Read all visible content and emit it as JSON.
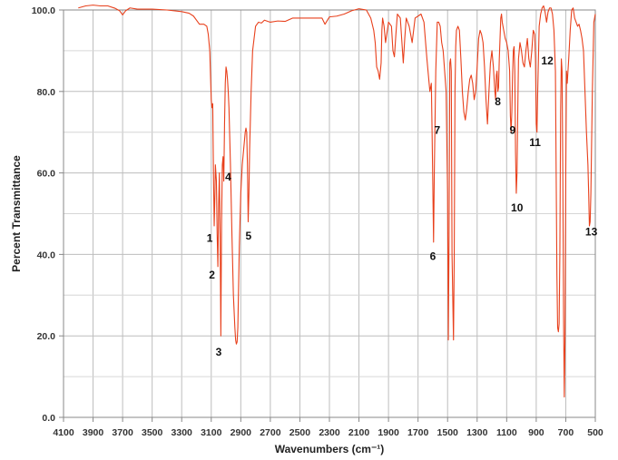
{
  "chart_data": {
    "type": "line",
    "title": "",
    "xlabel": "Wavenumbers (cm⁻¹)",
    "ylabel": "Percent Transmittance",
    "xlim": [
      4100,
      500
    ],
    "ylim": [
      0,
      100
    ],
    "x_reversed": true,
    "x_ticks": [
      "4100",
      "3900",
      "3700",
      "3500",
      "3300",
      "3100",
      "2900",
      "2700",
      "2500",
      "2300",
      "2100",
      "1900",
      "1700",
      "1500",
      "1300",
      "1100",
      "900",
      "700",
      "500"
    ],
    "y_ticks": [
      "0.0",
      "20.0",
      "40.0",
      "60.0",
      "80.0",
      "100.0"
    ],
    "grid": true,
    "line_color": "#e8401c",
    "series": [
      {
        "x": [
          4000,
          3950,
          3900,
          3850,
          3800,
          3750,
          3720,
          3700,
          3680,
          3650,
          3600,
          3500,
          3400,
          3300,
          3250,
          3220,
          3200,
          3180,
          3150,
          3130,
          3120,
          3110,
          3100,
          3095,
          3090,
          3085,
          3080,
          3075,
          3072,
          3065,
          3060,
          3055,
          3050,
          3045,
          3040,
          3035,
          3030,
          3025,
          3020,
          3015,
          3010,
          3005,
          3000,
          2995,
          2990,
          2985,
          2980,
          2970,
          2960,
          2950,
          2940,
          2935,
          2930,
          2925,
          2920,
          2915,
          2910,
          2900,
          2890,
          2880,
          2870,
          2865,
          2860,
          2855,
          2850,
          2845,
          2840,
          2830,
          2820,
          2800,
          2780,
          2760,
          2740,
          2700,
          2650,
          2600,
          2550,
          2500,
          2450,
          2400,
          2350,
          2330,
          2300,
          2250,
          2200,
          2150,
          2100,
          2050,
          2020,
          2000,
          1990,
          1980,
          1970,
          1960,
          1950,
          1945,
          1940,
          1930,
          1920,
          1900,
          1880,
          1870,
          1860,
          1850,
          1840,
          1820,
          1800,
          1790,
          1780,
          1760,
          1740,
          1720,
          1700,
          1680,
          1660,
          1640,
          1620,
          1610,
          1605,
          1600,
          1595,
          1590,
          1580,
          1570,
          1560,
          1550,
          1540,
          1530,
          1520,
          1510,
          1500,
          1495,
          1490,
          1485,
          1480,
          1475,
          1470,
          1460,
          1455,
          1450,
          1445,
          1440,
          1430,
          1420,
          1410,
          1400,
          1390,
          1380,
          1370,
          1360,
          1350,
          1340,
          1330,
          1320,
          1310,
          1300,
          1290,
          1280,
          1270,
          1260,
          1250,
          1240,
          1230,
          1220,
          1210,
          1200,
          1190,
          1185,
          1180,
          1175,
          1170,
          1165,
          1160,
          1155,
          1150,
          1145,
          1140,
          1135,
          1130,
          1120,
          1110,
          1100,
          1090,
          1080,
          1075,
          1070,
          1065,
          1060,
          1055,
          1050,
          1045,
          1040,
          1035,
          1030,
          1025,
          1020,
          1010,
          1000,
          990,
          980,
          970,
          960,
          950,
          940,
          930,
          920,
          910,
          905,
          900,
          895,
          890,
          880,
          870,
          860,
          850,
          840,
          830,
          820,
          810,
          800,
          790,
          780,
          770,
          765,
          760,
          755,
          750,
          745,
          740,
          735,
          730,
          725,
          720,
          715,
          710,
          705,
          700,
          695,
          690,
          680,
          670,
          660,
          650,
          640,
          630,
          620,
          610,
          600,
          590,
          580,
          570,
          560,
          550,
          545,
          540,
          535,
          530,
          520,
          510,
          500
        ],
        "y": [
          100.5,
          101.0,
          101.2,
          101.0,
          101.0,
          100.4,
          99.8,
          98.8,
          99.8,
          100.5,
          100.2,
          100.2,
          100.0,
          99.6,
          99.2,
          98.5,
          97.5,
          96.5,
          96.5,
          96.0,
          94.0,
          90.0,
          78.0,
          76.0,
          77.0,
          60.0,
          47.0,
          55.0,
          62.0,
          58.0,
          45.0,
          37.0,
          52.0,
          60.0,
          45.0,
          20.0,
          48.0,
          62.0,
          64.0,
          58.0,
          72.0,
          82.0,
          86.0,
          85.0,
          83.0,
          80.0,
          76.0,
          62.0,
          45.0,
          30.0,
          22.0,
          19.0,
          18.0,
          18.5,
          22.0,
          32.0,
          42.0,
          55.0,
          62.0,
          66.0,
          70.0,
          71.0,
          70.0,
          62.0,
          48.0,
          55.0,
          66.0,
          80.0,
          90.0,
          96.0,
          97.0,
          96.8,
          97.5,
          97.0,
          97.3,
          97.2,
          98.0,
          98.0,
          98.0,
          98.0,
          98.0,
          96.5,
          98.3,
          98.5,
          99.0,
          99.8,
          100.3,
          100.0,
          98.0,
          95.0,
          92.0,
          86.0,
          85.0,
          83.0,
          87.0,
          95.0,
          98.0,
          96.0,
          92.0,
          97.0,
          96.0,
          90.0,
          88.5,
          94.0,
          99.0,
          98.0,
          87.0,
          93.0,
          98.0,
          96.0,
          92.0,
          98.0,
          98.5,
          99.0,
          97.0,
          88.0,
          80.0,
          82.0,
          70.0,
          57.0,
          43.0,
          60.0,
          85.0,
          97.0,
          97.0,
          96.0,
          92.0,
          90.0,
          85.0,
          80.0,
          55.0,
          19.0,
          45.0,
          87.0,
          88.0,
          85.0,
          40.0,
          19.0,
          40.0,
          80.0,
          91.0,
          95.0,
          96.0,
          95.0,
          88.0,
          80.0,
          75.0,
          73.0,
          76.0,
          80.0,
          83.0,
          84.0,
          82.0,
          78.0,
          80.0,
          86.0,
          93.0,
          95.0,
          94.0,
          92.0,
          86.0,
          78.0,
          72.0,
          80.0,
          87.0,
          90.0,
          86.0,
          83.0,
          80.0,
          78.0,
          84.0,
          85.0,
          80.0,
          81.0,
          88.0,
          93.0,
          98.0,
          99.0,
          97.0,
          95.0,
          93.0,
          92.0,
          90.0,
          85.0,
          74.0,
          70.0,
          75.0,
          84.0,
          90.0,
          91.0,
          85.0,
          65.0,
          55.0,
          60.0,
          75.0,
          88.0,
          92.0,
          90.0,
          87.0,
          86.0,
          90.0,
          93.0,
          88.0,
          86.0,
          90.0,
          95.0,
          94.0,
          88.0,
          72.0,
          70.0,
          80.0,
          96.0,
          99.0,
          100.5,
          101.0,
          99.5,
          97.0,
          99.5,
          100.5,
          100.5,
          99.0,
          95.0,
          85.0,
          60.0,
          35.0,
          22.0,
          21.0,
          23.0,
          40.0,
          75.0,
          88.0,
          85.0,
          60.0,
          25.0,
          5.0,
          20.0,
          60.0,
          85.0,
          82.0,
          88.0,
          95.0,
          100.0,
          100.5,
          98.0,
          97.0,
          96.0,
          96.5,
          95.0,
          93.0,
          90.0,
          80.0,
          70.0,
          62.0,
          55.0,
          47.0,
          48.0,
          55.0,
          80.0,
          97.0,
          99.0
        ]
      }
    ],
    "annotations": [
      {
        "text": "1",
        "x": 3110,
        "y": 44
      },
      {
        "text": "2",
        "x": 3095,
        "y": 35
      },
      {
        "text": "3",
        "x": 3050,
        "y": 16
      },
      {
        "text": "4",
        "x": 2985,
        "y": 59
      },
      {
        "text": "5",
        "x": 2848,
        "y": 44.5
      },
      {
        "text": "6",
        "x": 1600,
        "y": 39.5
      },
      {
        "text": "7",
        "x": 1570,
        "y": 70.5
      },
      {
        "text": "8",
        "x": 1160,
        "y": 77.5
      },
      {
        "text": "9",
        "x": 1060,
        "y": 70.5
      },
      {
        "text": "10",
        "x": 1030,
        "y": 51.5
      },
      {
        "text": "11",
        "x": 908,
        "y": 67.5
      },
      {
        "text": "12",
        "x": 825,
        "y": 87.5
      },
      {
        "text": "13",
        "x": 527,
        "y": 45.5
      }
    ]
  }
}
